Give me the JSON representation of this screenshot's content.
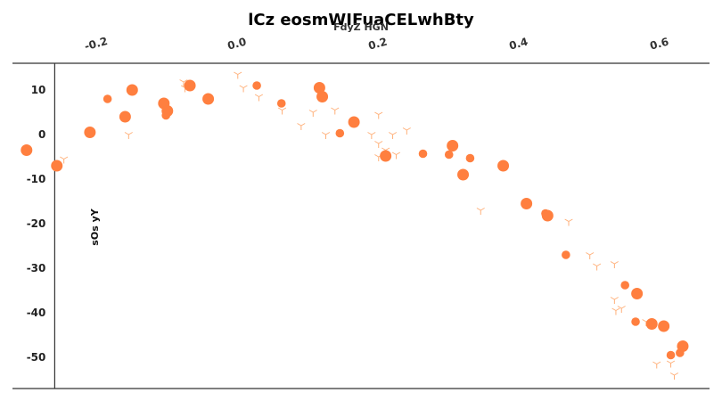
{
  "chart_data": {
    "type": "scatter",
    "title": "lCz  eosmWIFuaCELwhBty",
    "xlabel": "FdyZ HGN",
    "ylabel": "sOs yY",
    "xlim": [
      -0.32,
      0.67
    ],
    "ylim": [
      -57,
      16
    ],
    "xticks": [
      "-0.2",
      "0.0",
      "0.2",
      "0.4",
      "0.6"
    ],
    "xtick_values": [
      -0.2,
      0.0,
      0.2,
      0.4,
      0.6
    ],
    "yticks": [
      "10",
      "0",
      "-10",
      "-20",
      "-30",
      "-40",
      "-50"
    ],
    "ytick_values": [
      10,
      0,
      -10,
      -20,
      -30,
      -40,
      -50
    ],
    "x_axis_position": "top",
    "y_axis_at_x": -0.26,
    "grid": false,
    "colors": {
      "circles": "#ff7f3f",
      "markers": "#ffb07a",
      "axis": "#333333"
    },
    "series": [
      {
        "marker": "circle",
        "points": [
          {
            "x": -0.3,
            "y": -3.5,
            "s": 2
          },
          {
            "x": -0.257,
            "y": -7,
            "s": 2
          },
          {
            "x": -0.21,
            "y": 0.5,
            "s": 2
          },
          {
            "x": -0.185,
            "y": 8,
            "s": 1
          },
          {
            "x": -0.16,
            "y": 4,
            "s": 2
          },
          {
            "x": -0.15,
            "y": 10,
            "s": 2
          },
          {
            "x": -0.105,
            "y": 7,
            "s": 2
          },
          {
            "x": -0.102,
            "y": 4.3,
            "s": 1
          },
          {
            "x": -0.1,
            "y": 5.3,
            "s": 2
          },
          {
            "x": -0.068,
            "y": 11,
            "s": 2
          },
          {
            "x": -0.042,
            "y": 8,
            "s": 2
          },
          {
            "x": 0.027,
            "y": 11,
            "s": 1
          },
          {
            "x": 0.062,
            "y": 7,
            "s": 1
          },
          {
            "x": 0.116,
            "y": 10.5,
            "s": 2
          },
          {
            "x": 0.12,
            "y": 8.5,
            "s": 2
          },
          {
            "x": 0.145,
            "y": 0.3,
            "s": 1
          },
          {
            "x": 0.165,
            "y": 2.8,
            "s": 2
          },
          {
            "x": 0.21,
            "y": -4.8,
            "s": 2
          },
          {
            "x": 0.263,
            "y": -4.3,
            "s": 1
          },
          {
            "x": 0.3,
            "y": -4.5,
            "s": 1
          },
          {
            "x": 0.305,
            "y": -2.5,
            "s": 2
          },
          {
            "x": 0.32,
            "y": -9,
            "s": 2
          },
          {
            "x": 0.33,
            "y": -5.3,
            "s": 1
          },
          {
            "x": 0.377,
            "y": -7,
            "s": 2
          },
          {
            "x": 0.41,
            "y": -15.5,
            "s": 2
          },
          {
            "x": 0.437,
            "y": -17.7,
            "s": 1
          },
          {
            "x": 0.44,
            "y": -18.2,
            "s": 2
          },
          {
            "x": 0.466,
            "y": -27,
            "s": 1
          },
          {
            "x": 0.55,
            "y": -33.8,
            "s": 1
          },
          {
            "x": 0.567,
            "y": -35.7,
            "s": 2
          },
          {
            "x": 0.565,
            "y": -42,
            "s": 1
          },
          {
            "x": 0.588,
            "y": -42.5,
            "s": 2
          },
          {
            "x": 0.605,
            "y": -43,
            "s": 2
          },
          {
            "x": 0.615,
            "y": -49.5,
            "s": 1
          },
          {
            "x": 0.628,
            "y": -49,
            "s": 1
          },
          {
            "x": 0.632,
            "y": -47.5,
            "s": 2
          }
        ]
      },
      {
        "marker": "tri_down",
        "points": [
          {
            "x": -0.247,
            "y": -5.5
          },
          {
            "x": -0.155,
            "y": 0
          },
          {
            "x": -0.077,
            "y": 11.8
          },
          {
            "x": -0.075,
            "y": 10.5
          },
          {
            "x": 0.0,
            "y": 13.5
          },
          {
            "x": 0.008,
            "y": 10.5
          },
          {
            "x": 0.03,
            "y": 8.5
          },
          {
            "x": 0.063,
            "y": 5.5
          },
          {
            "x": 0.09,
            "y": 2
          },
          {
            "x": 0.107,
            "y": 5
          },
          {
            "x": 0.125,
            "y": 0
          },
          {
            "x": 0.138,
            "y": 5.5
          },
          {
            "x": 0.19,
            "y": 0
          },
          {
            "x": 0.2,
            "y": 4.5
          },
          {
            "x": 0.2,
            "y": -2
          },
          {
            "x": 0.2,
            "y": -5
          },
          {
            "x": 0.21,
            "y": -3.5
          },
          {
            "x": 0.22,
            "y": 0
          },
          {
            "x": 0.225,
            "y": -4.5
          },
          {
            "x": 0.24,
            "y": 1
          },
          {
            "x": 0.345,
            "y": -17
          },
          {
            "x": 0.47,
            "y": -19.5
          },
          {
            "x": 0.5,
            "y": -27
          },
          {
            "x": 0.51,
            "y": -29.5
          },
          {
            "x": 0.535,
            "y": -29
          },
          {
            "x": 0.535,
            "y": -37
          },
          {
            "x": 0.537,
            "y": -39.5
          },
          {
            "x": 0.545,
            "y": -39
          },
          {
            "x": 0.58,
            "y": -42
          },
          {
            "x": 0.595,
            "y": -51.5
          },
          {
            "x": 0.615,
            "y": -51.3
          },
          {
            "x": 0.62,
            "y": -54
          }
        ]
      }
    ]
  }
}
